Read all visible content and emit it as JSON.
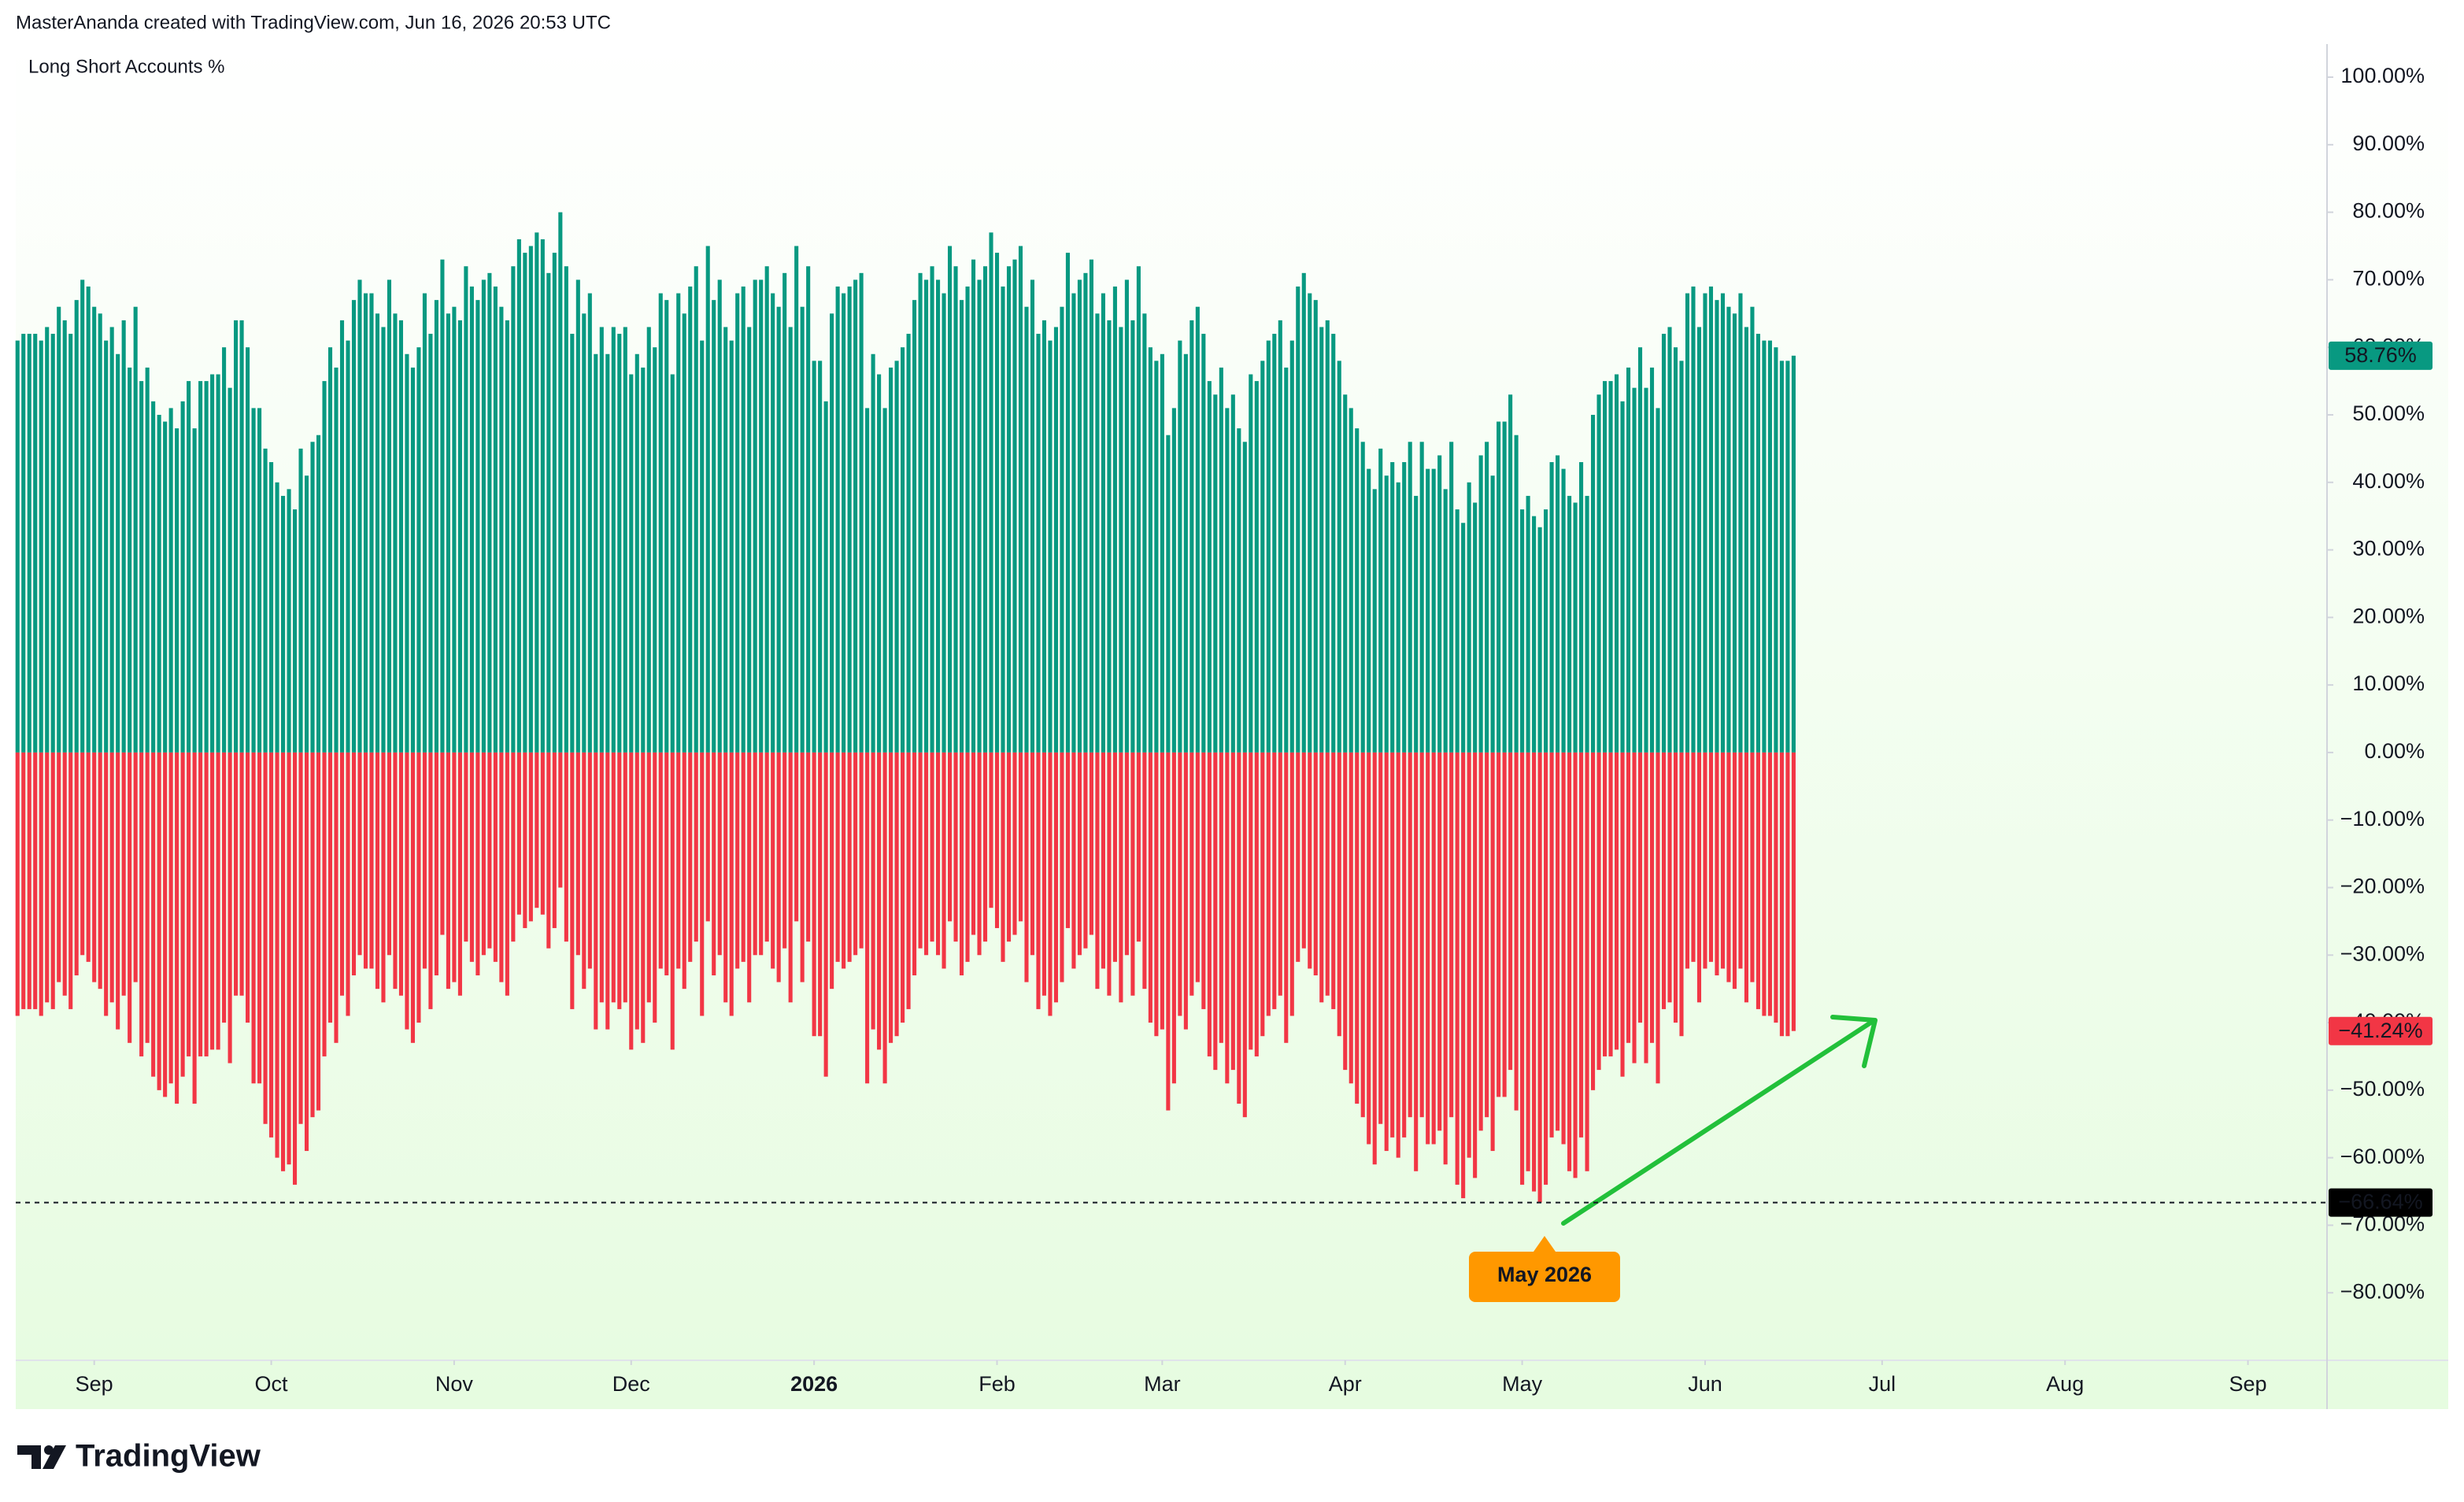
{
  "header": "MasterAnanda created with TradingView.com, Jun 16, 2026 20:53 UTC",
  "footer": "TradingView",
  "chart_data": {
    "type": "bar",
    "title": "Long Short Accounts %",
    "xlim": [
      -0.3,
      391.4
    ],
    "xticks": [
      {
        "value": 13,
        "label": "Sep"
      },
      {
        "value": 43,
        "label": "Oct"
      },
      {
        "value": 74,
        "label": "Nov"
      },
      {
        "value": 104,
        "label": "Dec"
      },
      {
        "value": 135,
        "label": "2026",
        "bold": true
      },
      {
        "value": 166,
        "label": "Feb"
      },
      {
        "value": 194,
        "label": "Mar"
      },
      {
        "value": 225,
        "label": "Apr"
      },
      {
        "value": 255,
        "label": "May"
      },
      {
        "value": 286,
        "label": "Jun"
      },
      {
        "value": 316,
        "label": "Jul"
      },
      {
        "value": 347,
        "label": "Aug"
      },
      {
        "value": 378,
        "label": "Sep"
      }
    ],
    "ylim": [
      -90,
      104.9
    ],
    "yticks": [
      {
        "value": 100,
        "label": "100.00%"
      },
      {
        "value": 90,
        "label": "90.00%"
      },
      {
        "value": 80,
        "label": "80.00%"
      },
      {
        "value": 70,
        "label": "70.00%"
      },
      {
        "value": 60,
        "label": "60.00%"
      },
      {
        "value": 50,
        "label": "50.00%"
      },
      {
        "value": 40,
        "label": "40.00%"
      },
      {
        "value": 30,
        "label": "30.00%"
      },
      {
        "value": 20,
        "label": "20.00%"
      },
      {
        "value": 10,
        "label": "10.00%"
      },
      {
        "value": 0,
        "label": "0.00%"
      },
      {
        "value": -10,
        "label": "−10.00%"
      },
      {
        "value": -20,
        "label": "−20.00%"
      },
      {
        "value": -30,
        "label": "−30.00%"
      },
      {
        "value": -40,
        "label": "−40.00%"
      },
      {
        "value": -50,
        "label": "−50.00%"
      },
      {
        "value": -60,
        "label": "−60.00%"
      },
      {
        "value": -70,
        "label": "−70.00%"
      },
      {
        "value": -80,
        "label": "−80.00%"
      }
    ],
    "grid": false,
    "series": [
      {
        "color": "#089981",
        "values": [
          61,
          62,
          62,
          62,
          61,
          63,
          62,
          66,
          64,
          62,
          67,
          70,
          69,
          66,
          65,
          61,
          63,
          59,
          64,
          57,
          66,
          55,
          57,
          52,
          50,
          49,
          51,
          48,
          52,
          55,
          48,
          55,
          55,
          56,
          56,
          60,
          54,
          64,
          64,
          60,
          51,
          51,
          45,
          43,
          40,
          38,
          39,
          36,
          45,
          41,
          46,
          47,
          55,
          60,
          57,
          64,
          61,
          67,
          70,
          68,
          68,
          65,
          63,
          70,
          65,
          64,
          59,
          57,
          60,
          68,
          62,
          67,
          73,
          65,
          66,
          64,
          72,
          69,
          67,
          70,
          71,
          69,
          66,
          64,
          72,
          76,
          74,
          75,
          77,
          76,
          71,
          74,
          80,
          72,
          62,
          70,
          65,
          68,
          59,
          63,
          59,
          63,
          62,
          63,
          56,
          59,
          57,
          63,
          60,
          68,
          67,
          56,
          68,
          65,
          69,
          72,
          61,
          75,
          67,
          70,
          63,
          61,
          68,
          69,
          63,
          70,
          70,
          72,
          68,
          66,
          71,
          63,
          75,
          66,
          72,
          58,
          58,
          52,
          65,
          69,
          68,
          69,
          70,
          71,
          51,
          59,
          56,
          51,
          57,
          58,
          60,
          62,
          67,
          71,
          70,
          72,
          70,
          68,
          75,
          72,
          67,
          69,
          73,
          70,
          72,
          77,
          74,
          69,
          72,
          73,
          75,
          66,
          70,
          62,
          64,
          61,
          63,
          66,
          74,
          68,
          70,
          71,
          73,
          65,
          68,
          64,
          69,
          63,
          70,
          64,
          72,
          65,
          60,
          58,
          59,
          47,
          51,
          61,
          59,
          64,
          66,
          62,
          55,
          53,
          57,
          51,
          53,
          48,
          46,
          56,
          55,
          58,
          61,
          62,
          64,
          57,
          61,
          69,
          71,
          68,
          67,
          63,
          64,
          62,
          58,
          53,
          51,
          48,
          46,
          42,
          39,
          45,
          41,
          43,
          40,
          43,
          46,
          38,
          46,
          42,
          42,
          44,
          39,
          46,
          36,
          34,
          40,
          37,
          44,
          46,
          41,
          49,
          49,
          53,
          47,
          36,
          38,
          35,
          33.36,
          36,
          43,
          44,
          42,
          38,
          37,
          43,
          38,
          50,
          53,
          55,
          55,
          56,
          52,
          57,
          54,
          60,
          54,
          57,
          51,
          62,
          63,
          60,
          58,
          68,
          69,
          63,
          68,
          69,
          67,
          68,
          66,
          65,
          68,
          63,
          66,
          62,
          61,
          61,
          60,
          58,
          58,
          58.76
        ]
      },
      {
        "color": "#f23645",
        "values": [
          -39,
          -38,
          -38,
          -38,
          -39,
          -37,
          -38,
          -34,
          -36,
          -38,
          -33,
          -30,
          -31,
          -34,
          -35,
          -39,
          -37,
          -41,
          -36,
          -43,
          -34,
          -45,
          -43,
          -48,
          -50,
          -51,
          -49,
          -52,
          -48,
          -45,
          -52,
          -45,
          -45,
          -44,
          -44,
          -40,
          -46,
          -36,
          -36,
          -40,
          -49,
          -49,
          -55,
          -57,
          -60,
          -62,
          -61,
          -64,
          -55,
          -59,
          -54,
          -53,
          -45,
          -40,
          -43,
          -36,
          -39,
          -33,
          -30,
          -32,
          -32,
          -35,
          -37,
          -30,
          -35,
          -36,
          -41,
          -43,
          -40,
          -32,
          -38,
          -33,
          -27,
          -35,
          -34,
          -36,
          -28,
          -31,
          -33,
          -30,
          -29,
          -31,
          -34,
          -36,
          -28,
          -24,
          -26,
          -25,
          -23,
          -24,
          -29,
          -26,
          -20,
          -28,
          -38,
          -30,
          -35,
          -32,
          -41,
          -37,
          -41,
          -37,
          -38,
          -37,
          -44,
          -41,
          -43,
          -37,
          -40,
          -32,
          -33,
          -44,
          -32,
          -35,
          -31,
          -28,
          -39,
          -25,
          -33,
          -30,
          -37,
          -39,
          -32,
          -31,
          -37,
          -30,
          -30,
          -28,
          -32,
          -34,
          -29,
          -37,
          -25,
          -34,
          -28,
          -42,
          -42,
          -48,
          -35,
          -31,
          -32,
          -31,
          -30,
          -29,
          -49,
          -41,
          -44,
          -49,
          -43,
          -42,
          -40,
          -38,
          -33,
          -29,
          -30,
          -28,
          -30,
          -32,
          -25,
          -28,
          -33,
          -31,
          -27,
          -30,
          -28,
          -23,
          -26,
          -31,
          -28,
          -27,
          -25,
          -34,
          -30,
          -38,
          -36,
          -39,
          -37,
          -34,
          -26,
          -32,
          -30,
          -29,
          -27,
          -35,
          -32,
          -36,
          -31,
          -37,
          -30,
          -36,
          -28,
          -35,
          -40,
          -42,
          -41,
          -53,
          -49,
          -39,
          -41,
          -36,
          -34,
          -38,
          -45,
          -47,
          -43,
          -49,
          -47,
          -52,
          -54,
          -44,
          -45,
          -42,
          -39,
          -38,
          -36,
          -43,
          -39,
          -31,
          -29,
          -32,
          -33,
          -37,
          -36,
          -38,
          -42,
          -47,
          -49,
          -52,
          -54,
          -58,
          -61,
          -55,
          -59,
          -57,
          -60,
          -57,
          -54,
          -62,
          -54,
          -58,
          -58,
          -56,
          -61,
          -54,
          -64,
          -66,
          -60,
          -63,
          -56,
          -54,
          -59,
          -51,
          -51,
          -47,
          -53,
          -64,
          -62,
          -65,
          -66.64,
          -64,
          -57,
          -56,
          -58,
          -62,
          -63,
          -57,
          -62,
          -50,
          -47,
          -45,
          -45,
          -44,
          -48,
          -43,
          -46,
          -40,
          -46,
          -43,
          -49,
          -38,
          -37,
          -40,
          -42,
          -32,
          -31,
          -37,
          -32,
          -31,
          -33,
          -32,
          -34,
          -35,
          -32,
          -37,
          -34,
          -38,
          -39,
          -39,
          -40,
          -42,
          -42,
          -41.24
        ]
      }
    ],
    "price_labels": [
      {
        "value": 58.76,
        "label": "58.76%",
        "color": "#089981"
      },
      {
        "value": -41.24,
        "label": "−41.24%",
        "color": "#f23645"
      },
      {
        "value": -66.64,
        "label": "−66.64%",
        "color": "#000000",
        "dashed": true
      }
    ],
    "annotation": "May 2026"
  }
}
